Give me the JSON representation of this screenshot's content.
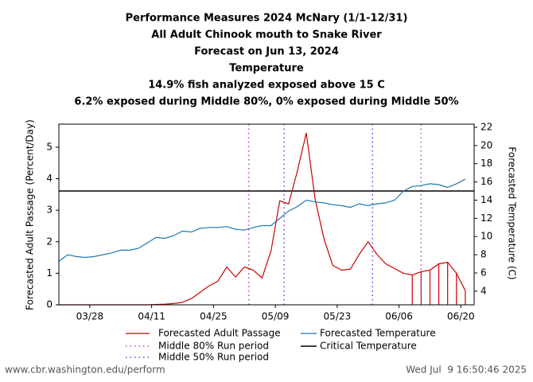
{
  "chart_data": {
    "type": "line",
    "title": [
      "Performance Measures 2024 McNary (1/1-12/31)",
      "All Adult Chinook mouth to Snake River",
      "Forecast on Jun 13, 2024",
      "Temperature",
      "14.9% fish analyzed exposed above 15 C",
      "6.2% exposed during Middle 80%, 0% exposed during Middle 50%"
    ],
    "x": [
      "03/21",
      "03/23",
      "03/25",
      "03/27",
      "03/29",
      "03/31",
      "04/02",
      "04/04",
      "04/06",
      "04/08",
      "04/10",
      "04/12",
      "04/14",
      "04/16",
      "04/18",
      "04/20",
      "04/22",
      "04/24",
      "04/26",
      "04/28",
      "04/30",
      "05/02",
      "05/04",
      "05/06",
      "05/08",
      "05/10",
      "05/12",
      "05/14",
      "05/16",
      "05/18",
      "05/20",
      "05/22",
      "05/24",
      "05/26",
      "05/28",
      "05/30",
      "06/01",
      "06/03",
      "06/05",
      "06/07",
      "06/09",
      "06/11",
      "06/13",
      "06/15",
      "06/17",
      "06/19",
      "06/21"
    ],
    "series": [
      {
        "name": "Forecasted Adult Passage",
        "color": "#cc0000",
        "values": [
          0,
          0,
          0,
          0,
          0,
          0,
          0,
          0,
          0,
          0,
          0,
          0.01,
          0.02,
          0.04,
          0.08,
          0.2,
          0.4,
          0.6,
          0.75,
          1.2,
          0.88,
          1.2,
          1.1,
          0.85,
          1.7,
          3.3,
          3.2,
          4.25,
          5.45,
          3.35,
          2.1,
          1.25,
          1.1,
          1.13,
          1.6,
          2.0,
          1.6,
          1.3,
          1.15,
          1.0,
          0.95,
          1.05,
          1.1,
          1.3,
          1.35,
          1.0,
          0.45
        ]
      },
      {
        "name": "Forecasted Temperature",
        "color": "#1f78b4",
        "axis": "y2",
        "values": [
          7.3,
          8.0,
          7.8,
          7.7,
          7.8,
          8.0,
          8.2,
          8.5,
          8.5,
          8.7,
          9.3,
          9.9,
          9.8,
          10.1,
          10.6,
          10.5,
          10.9,
          11.0,
          11.0,
          11.1,
          10.8,
          10.7,
          11.0,
          11.2,
          11.2,
          12.0,
          12.8,
          13.3,
          14.0,
          13.8,
          13.7,
          13.5,
          13.4,
          13.2,
          13.6,
          13.4,
          13.6,
          13.7,
          14.0,
          15.0,
          15.5,
          15.6,
          15.8,
          15.7,
          15.4,
          15.8,
          16.3
        ]
      }
    ],
    "ylabel": "Forecasted Adult Passage (Percent/Day)",
    "y2label": "Forecasted Temperature (C)",
    "ylim": [
      0,
      5.73
    ],
    "yticks": [
      0,
      1,
      2,
      3,
      4,
      5
    ],
    "y2lim": [
      2.5,
      22.35
    ],
    "y2ticks": [
      4,
      6,
      8,
      10,
      12,
      14,
      16,
      18,
      20,
      22
    ],
    "xlim": [
      "03/21",
      "06/23"
    ],
    "xticks": [
      "03/28",
      "04/11",
      "04/25",
      "05/09",
      "05/23",
      "06/06",
      "06/20"
    ],
    "run_periods": [
      {
        "name": "Middle 80% Run period",
        "color": "#c040c0",
        "dates": [
          "05/03",
          "06/11"
        ]
      },
      {
        "name": "Middle 50% Run period",
        "color": "#6a3de8",
        "dates": [
          "05/11",
          "05/31"
        ]
      }
    ],
    "critical": {
      "name": "Critical Temperature",
      "value": 15,
      "axis": "y2",
      "color": "#000000"
    },
    "hatch_above_critical": true
  },
  "footer": {
    "url": "www.cbr.washington.edu/perform",
    "timestamp": "Wed Jul  9 16:50:46 2025"
  }
}
